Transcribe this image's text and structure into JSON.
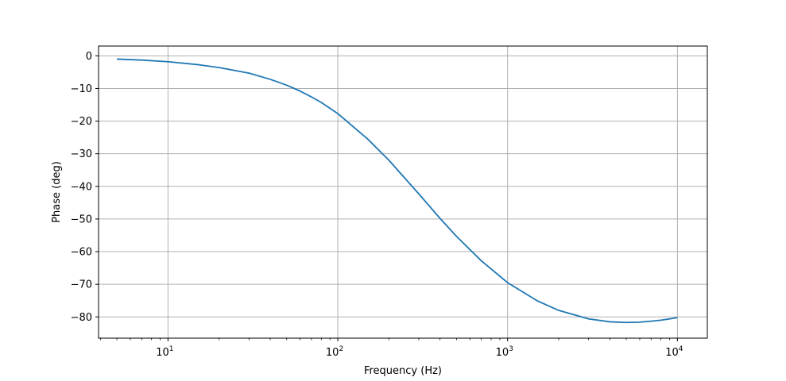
{
  "chart_data": {
    "type": "line",
    "xlabel": "Frequency (Hz)",
    "ylabel": "Phase (deg)",
    "x_scale": "log",
    "xlim": [
      3.9,
      15000
    ],
    "ylim": [
      -86.5,
      3
    ],
    "grid": true,
    "x_ticks": [
      {
        "value": 10,
        "label": "10",
        "exp": "1"
      },
      {
        "value": 100,
        "label": "10",
        "exp": "2"
      },
      {
        "value": 1000,
        "label": "10",
        "exp": "3"
      },
      {
        "value": 10000,
        "label": "10",
        "exp": "4"
      }
    ],
    "y_ticks": [
      {
        "value": 0,
        "label": "0"
      },
      {
        "value": -10,
        "label": "−10"
      },
      {
        "value": -20,
        "label": "−20"
      },
      {
        "value": -30,
        "label": "−30"
      },
      {
        "value": -40,
        "label": "−40"
      },
      {
        "value": -50,
        "label": "−50"
      },
      {
        "value": -60,
        "label": "−60"
      },
      {
        "value": -70,
        "label": "−70"
      },
      {
        "value": -80,
        "label": "−80"
      }
    ],
    "series": [
      {
        "color": "#1f77b4",
        "x": [
          5,
          7,
          10,
          15,
          20,
          30,
          40,
          50,
          60,
          70,
          80,
          100,
          150,
          200,
          300,
          400,
          500,
          700,
          1000,
          1500,
          2000,
          3000,
          4000,
          5000,
          6000,
          7000,
          8000,
          9000,
          10000
        ],
        "y": [
          -1.0,
          -1.3,
          -1.8,
          -2.7,
          -3.6,
          -5.3,
          -7.2,
          -9.0,
          -10.8,
          -12.6,
          -14.3,
          -17.7,
          -25.5,
          -32.0,
          -42.3,
          -49.8,
          -55.3,
          -62.8,
          -69.5,
          -75.1,
          -78.0,
          -80.6,
          -81.5,
          -81.7,
          -81.6,
          -81.3,
          -81.0,
          -80.6,
          -80.2
        ]
      }
    ]
  }
}
